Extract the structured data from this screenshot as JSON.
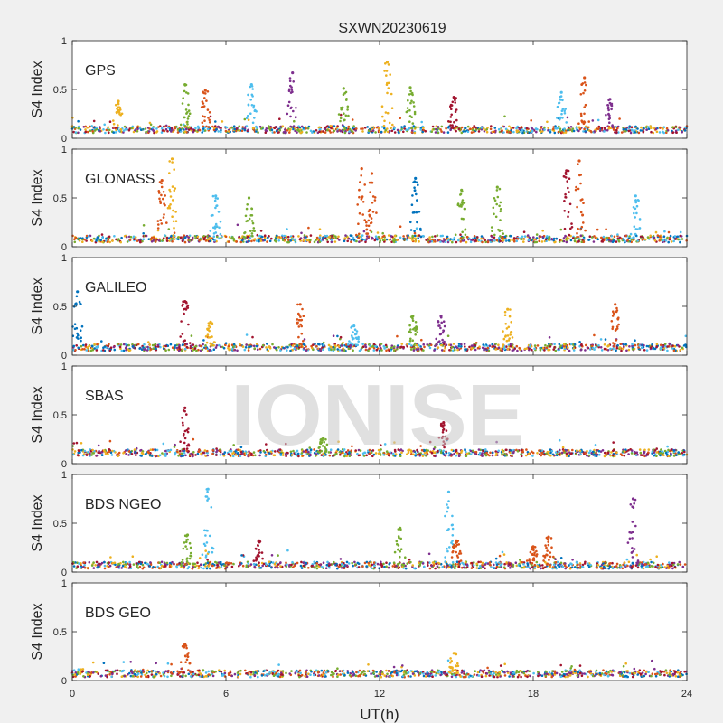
{
  "chart_data": {
    "type": "scatter",
    "title": "SXWN20230619",
    "xlabel": "UT(h)",
    "ylabel": "S4 Index",
    "xlim": [
      0,
      24
    ],
    "ylim": [
      0,
      1
    ],
    "x_ticks": [
      "0",
      "6",
      "12",
      "18",
      "24"
    ],
    "y_ticks": [
      "0",
      "0.5",
      "1"
    ],
    "watermark": "IONISE",
    "series_colors": [
      "#0072BD",
      "#D95319",
      "#EDB120",
      "#7E2F8E",
      "#77AC30",
      "#4DBEEE",
      "#A2142F"
    ],
    "panels": [
      {
        "label": "GPS",
        "baseline": 0.09,
        "spikes": [
          {
            "x": 1.8,
            "y": 0.38,
            "color": 2
          },
          {
            "x": 4.4,
            "y": 0.55,
            "color": 4
          },
          {
            "x": 5.2,
            "y": 0.49,
            "color": 1
          },
          {
            "x": 7.0,
            "y": 0.55,
            "color": 5
          },
          {
            "x": 8.6,
            "y": 0.67,
            "color": 3
          },
          {
            "x": 10.6,
            "y": 0.51,
            "color": 4
          },
          {
            "x": 12.3,
            "y": 0.78,
            "color": 2
          },
          {
            "x": 13.2,
            "y": 0.52,
            "color": 4
          },
          {
            "x": 14.9,
            "y": 0.42,
            "color": 6
          },
          {
            "x": 19.1,
            "y": 0.47,
            "color": 5
          },
          {
            "x": 20.0,
            "y": 0.62,
            "color": 1
          },
          {
            "x": 21.0,
            "y": 0.4,
            "color": 3
          }
        ]
      },
      {
        "label": "GLONASS",
        "baseline": 0.08,
        "spikes": [
          {
            "x": 3.5,
            "y": 0.68,
            "color": 1
          },
          {
            "x": 3.9,
            "y": 0.9,
            "color": 2
          },
          {
            "x": 5.6,
            "y": 0.52,
            "color": 5
          },
          {
            "x": 6.9,
            "y": 0.5,
            "color": 4
          },
          {
            "x": 11.3,
            "y": 0.8,
            "color": 1
          },
          {
            "x": 11.7,
            "y": 0.75,
            "color": 1
          },
          {
            "x": 13.4,
            "y": 0.7,
            "color": 0
          },
          {
            "x": 15.2,
            "y": 0.58,
            "color": 4
          },
          {
            "x": 16.6,
            "y": 0.61,
            "color": 4
          },
          {
            "x": 19.3,
            "y": 0.78,
            "color": 6
          },
          {
            "x": 19.8,
            "y": 0.88,
            "color": 1
          },
          {
            "x": 22.0,
            "y": 0.52,
            "color": 5
          }
        ]
      },
      {
        "label": "GALILEO",
        "baseline": 0.08,
        "spikes": [
          {
            "x": 0.2,
            "y": 0.65,
            "color": 0
          },
          {
            "x": 4.4,
            "y": 0.55,
            "color": 6
          },
          {
            "x": 5.4,
            "y": 0.34,
            "color": 2
          },
          {
            "x": 8.9,
            "y": 0.52,
            "color": 1
          },
          {
            "x": 11.0,
            "y": 0.3,
            "color": 5
          },
          {
            "x": 13.3,
            "y": 0.4,
            "color": 4
          },
          {
            "x": 14.4,
            "y": 0.4,
            "color": 3
          },
          {
            "x": 17.0,
            "y": 0.47,
            "color": 2
          },
          {
            "x": 21.2,
            "y": 0.52,
            "color": 1
          }
        ]
      },
      {
        "label": "SBAS",
        "baseline": 0.11,
        "spikes": [
          {
            "x": 4.4,
            "y": 0.57,
            "color": 6
          },
          {
            "x": 9.8,
            "y": 0.26,
            "color": 4
          },
          {
            "x": 14.5,
            "y": 0.42,
            "color": 6
          }
        ]
      },
      {
        "label": "BDS NGEO",
        "baseline": 0.07,
        "spikes": [
          {
            "x": 4.5,
            "y": 0.38,
            "color": 4
          },
          {
            "x": 5.3,
            "y": 0.85,
            "color": 5
          },
          {
            "x": 7.3,
            "y": 0.32,
            "color": 6
          },
          {
            "x": 12.8,
            "y": 0.45,
            "color": 4
          },
          {
            "x": 14.7,
            "y": 0.82,
            "color": 5
          },
          {
            "x": 15.0,
            "y": 0.32,
            "color": 1
          },
          {
            "x": 18.0,
            "y": 0.26,
            "color": 1
          },
          {
            "x": 18.6,
            "y": 0.36,
            "color": 1
          },
          {
            "x": 21.9,
            "y": 0.75,
            "color": 3
          }
        ]
      },
      {
        "label": "BDS GEO",
        "baseline": 0.07,
        "spikes": [
          {
            "x": 4.4,
            "y": 0.37,
            "color": 1
          },
          {
            "x": 14.9,
            "y": 0.28,
            "color": 2
          }
        ]
      }
    ]
  }
}
